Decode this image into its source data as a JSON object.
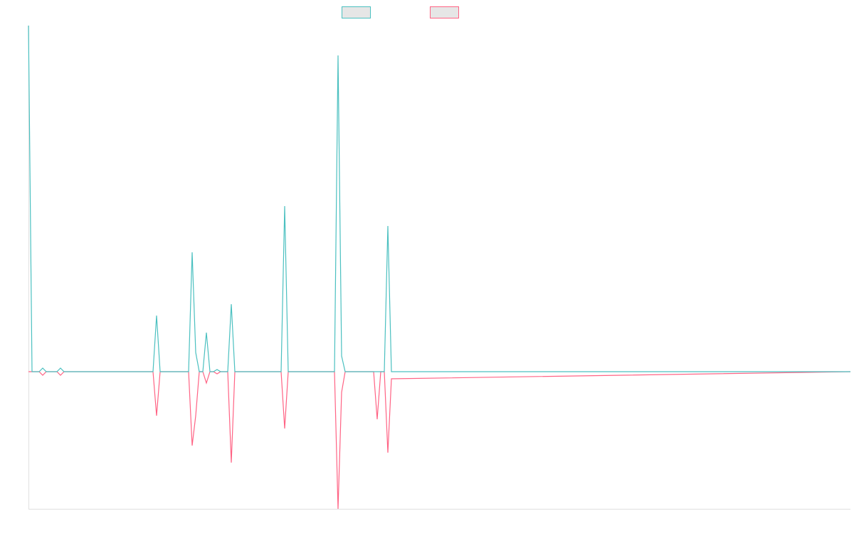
{
  "chart_data": {
    "type": "line",
    "x": [
      0,
      1,
      3,
      4,
      5,
      8,
      9,
      10,
      35,
      36,
      37,
      45,
      46,
      47,
      48,
      49,
      50,
      51,
      52,
      53,
      54,
      56,
      57,
      58,
      71,
      72,
      73,
      86,
      87,
      88,
      89,
      97,
      98,
      99,
      100,
      101,
      102,
      231
    ],
    "series": [
      {
        "color": "#4bc0c0",
        "values": [
          487,
          0,
          0,
          5,
          0,
          0,
          5,
          0,
          0,
          79,
          0,
          0,
          168,
          27,
          0,
          0,
          55,
          0,
          0,
          3,
          0,
          0,
          95,
          0,
          0,
          233,
          0,
          0,
          445,
          22,
          0,
          0,
          0,
          0,
          0,
          205,
          0,
          0
        ]
      },
      {
        "color": "#ff6384",
        "values": [
          0,
          0,
          0,
          -5,
          0,
          0,
          -5,
          0,
          0,
          -62,
          0,
          0,
          -104,
          -62,
          0,
          0,
          -16,
          0,
          0,
          -3,
          0,
          0,
          -128,
          0,
          0,
          -80,
          0,
          0,
          -193,
          -29,
          0,
          0,
          -67,
          0,
          0,
          -114,
          -10,
          0
        ]
      }
    ],
    "xlim": [
      0,
      231
    ],
    "ylim": [
      -193,
      487
    ],
    "legend": "top"
  }
}
